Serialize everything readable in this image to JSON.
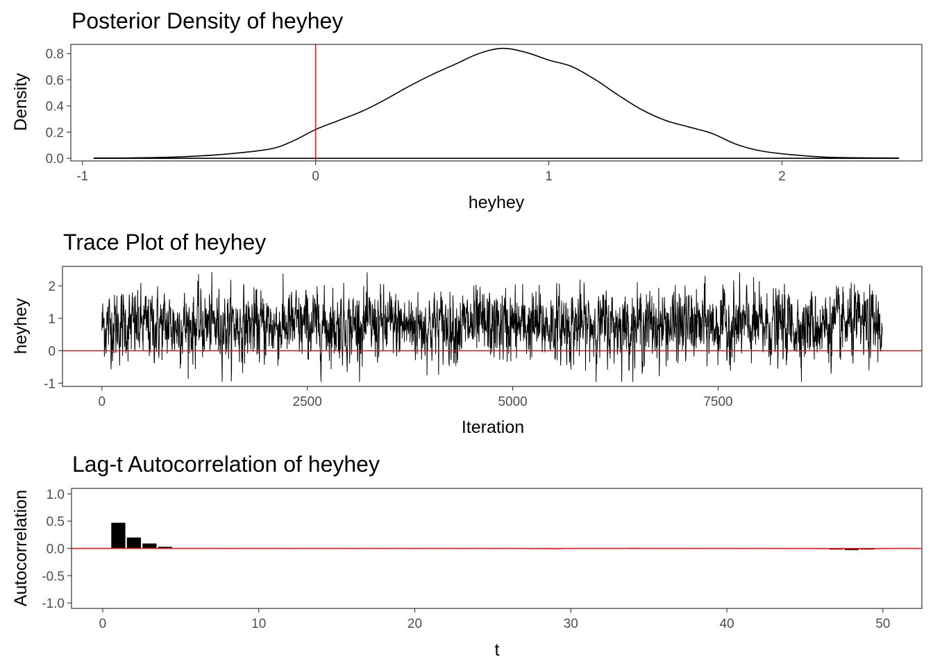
{
  "colors": {
    "series": "#000000",
    "reference": "#e41a1c",
    "tick_text": "#4d4d4d",
    "border": "#333333"
  },
  "chart_data": [
    {
      "type": "area",
      "title": "Posterior Density of heyhey",
      "xlabel": "heyhey",
      "ylabel": "Density",
      "xlim": [
        -1.05,
        2.6
      ],
      "ylim": [
        -0.02,
        0.87
      ],
      "xticks": [
        -1,
        0,
        1,
        2
      ],
      "xtick_labels": [
        "-1",
        "0",
        "1",
        "2"
      ],
      "yticks": [
        0,
        0.2,
        0.4,
        0.6,
        0.8
      ],
      "ytick_labels": [
        "0.0",
        "0.2",
        "0.4",
        "0.6",
        "0.8"
      ],
      "reference_line": {
        "axis": "x",
        "value": 0
      },
      "grid": false,
      "x": [
        -0.95,
        -0.8,
        -0.6,
        -0.4,
        -0.2,
        -0.1,
        0,
        0.1,
        0.2,
        0.3,
        0.4,
        0.5,
        0.6,
        0.7,
        0.8,
        0.9,
        1.0,
        1.1,
        1.2,
        1.3,
        1.4,
        1.5,
        1.6,
        1.7,
        1.8,
        1.9,
        2.0,
        2.2,
        2.5
      ],
      "y": [
        0.002,
        0.003,
        0.01,
        0.03,
        0.07,
        0.13,
        0.22,
        0.29,
        0.36,
        0.45,
        0.55,
        0.64,
        0.72,
        0.8,
        0.84,
        0.81,
        0.75,
        0.7,
        0.6,
        0.48,
        0.37,
        0.29,
        0.24,
        0.19,
        0.11,
        0.06,
        0.035,
        0.008,
        0.002
      ]
    },
    {
      "type": "line",
      "title": "Trace Plot of heyhey",
      "xlabel": "Iteration",
      "ylabel": "heyhey",
      "xlim": [
        -480,
        9980
      ],
      "ylim": [
        -1.1,
        2.6
      ],
      "xticks": [
        0,
        2500,
        5000,
        7500
      ],
      "xtick_labels": [
        "0",
        "2500",
        "5000",
        "7500"
      ],
      "yticks": [
        -1,
        0,
        1,
        2
      ],
      "ytick_labels": [
        "-1",
        "0",
        "1",
        "2"
      ],
      "n_iterations": 9500,
      "center": 0.77,
      "sd": 0.5,
      "range": [
        -0.95,
        2.42
      ],
      "reference_line": {
        "axis": "y",
        "value": 0
      },
      "grid": false
    },
    {
      "type": "bar",
      "title": "Lag-t Autocorrelation of heyhey",
      "xlabel": "t",
      "ylabel": "Autocorrelation",
      "xlim": [
        -2,
        52.5
      ],
      "ylim": [
        -1.1,
        1.1
      ],
      "xticks": [
        0,
        10,
        20,
        30,
        40,
        50
      ],
      "xtick_labels": [
        "0",
        "10",
        "20",
        "30",
        "40",
        "50"
      ],
      "yticks": [
        -1,
        -0.5,
        0,
        0.5,
        1
      ],
      "ytick_labels": [
        "-1.0",
        "-0.5",
        "0.0",
        "0.5",
        "1.0"
      ],
      "reference_line": {
        "axis": "y",
        "value": 0
      },
      "grid": false,
      "x": [
        1,
        2,
        3,
        4,
        5,
        6,
        7,
        8,
        9,
        10,
        11,
        12,
        13,
        14,
        15,
        16,
        17,
        18,
        19,
        20,
        21,
        22,
        23,
        24,
        25,
        26,
        27,
        28,
        29,
        30,
        31,
        32,
        33,
        34,
        35,
        36,
        37,
        38,
        39,
        40,
        41,
        42,
        43,
        44,
        45,
        46,
        47,
        48,
        49,
        50
      ],
      "values": [
        0.47,
        0.2,
        0.09,
        0.03,
        0.005,
        0.002,
        0.001,
        -0.002,
        0.001,
        0.003,
        0.002,
        -0.001,
        0.001,
        0.002,
        0.001,
        -0.002,
        0.001,
        0.0,
        0.002,
        -0.001,
        0.001,
        0.002,
        0.0,
        0.001,
        -0.002,
        0.001,
        -0.003,
        -0.01,
        -0.012,
        -0.004,
        0.002,
        0.003,
        0.004,
        0.01,
        0.004,
        0.002,
        0.001,
        -0.002,
        0.001,
        0.002,
        -0.003,
        0.002,
        -0.005,
        -0.008,
        -0.004,
        -0.01,
        -0.02,
        -0.03,
        -0.02,
        -0.01
      ]
    }
  ]
}
